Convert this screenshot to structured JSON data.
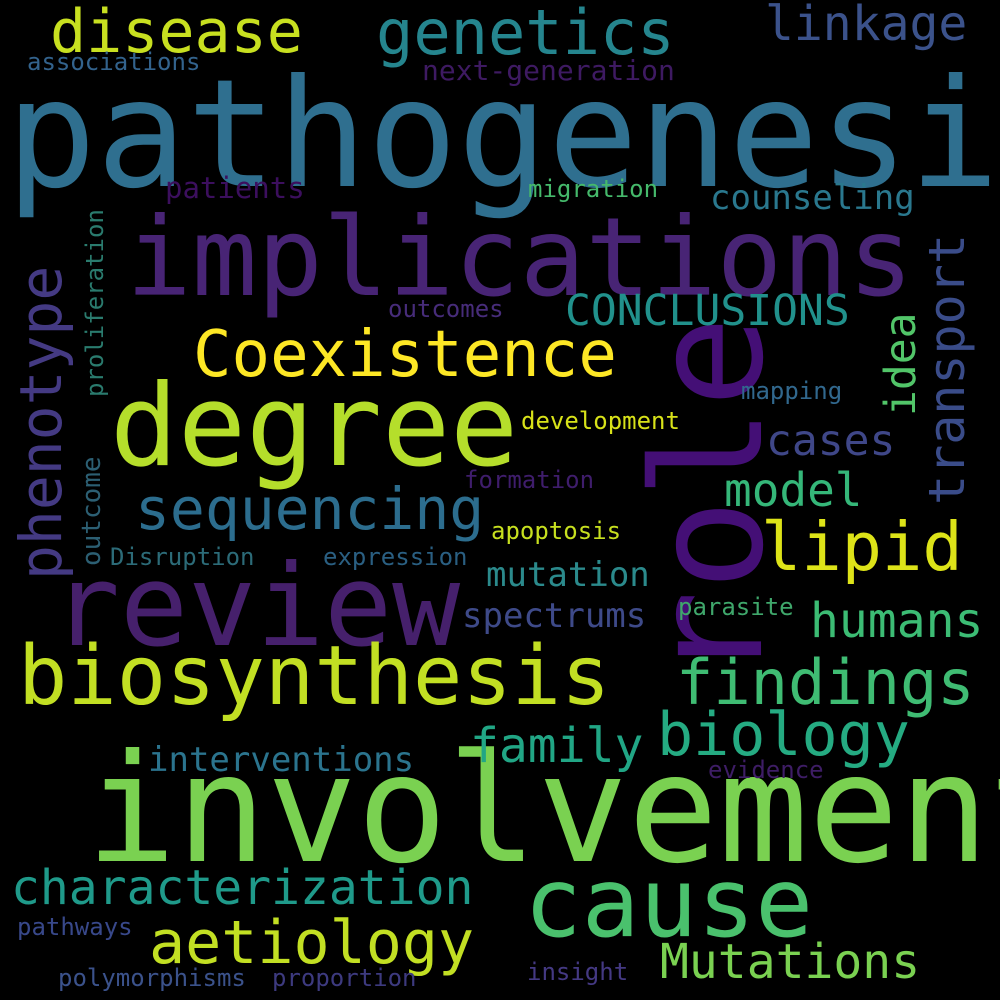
{
  "words": [
    {
      "text": "pathogenesis",
      "color": "#2f6f8f"
    },
    {
      "text": "involvement",
      "color": "#7ad151"
    },
    {
      "text": "implications",
      "color": "#482475"
    },
    {
      "text": "role",
      "color": "#440f76"
    },
    {
      "text": "degree",
      "color": "#b5de2b"
    },
    {
      "text": "review",
      "color": "#46206c"
    },
    {
      "text": "biosynthesis",
      "color": "#c2df23"
    },
    {
      "text": "cause",
      "color": "#4ac16d"
    },
    {
      "text": "disease",
      "color": "#c8e020"
    },
    {
      "text": "genetics",
      "color": "#25858e"
    },
    {
      "text": "linkage",
      "color": "#3b528b"
    },
    {
      "text": "associations",
      "color": "#33638d"
    },
    {
      "text": "next-generation",
      "color": "#3e1a62"
    },
    {
      "text": "patients",
      "color": "#3c0f5e"
    },
    {
      "text": "migration",
      "color": "#45b96b"
    },
    {
      "text": "counseling",
      "color": "#2a788e"
    },
    {
      "text": "phenotype",
      "color": "#443a83"
    },
    {
      "text": "proliferation",
      "color": "#2a7b6e"
    },
    {
      "text": "transport",
      "color": "#3a4c89"
    },
    {
      "text": "CONCLUSIONS",
      "color": "#21918c"
    },
    {
      "text": "idea",
      "color": "#52c569"
    },
    {
      "text": "Coexistence",
      "color": "#fde725"
    },
    {
      "text": "outcomes",
      "color": "#472c7a"
    },
    {
      "text": "mapping",
      "color": "#31688e"
    },
    {
      "text": "development",
      "color": "#d8e219"
    },
    {
      "text": "cases",
      "color": "#3f4788"
    },
    {
      "text": "model",
      "color": "#35b779"
    },
    {
      "text": "formation",
      "color": "#3f1d6c"
    },
    {
      "text": "sequencing",
      "color": "#2c6d8e"
    },
    {
      "text": "lipid",
      "color": "#dde318"
    },
    {
      "text": "outcome",
      "color": "#2c5f73"
    },
    {
      "text": "Disruption",
      "color": "#2c6b78"
    },
    {
      "text": "expression",
      "color": "#2a5f82"
    },
    {
      "text": "apoptosis",
      "color": "#c7e01f"
    },
    {
      "text": "mutation",
      "color": "#2b8a8c"
    },
    {
      "text": "humans",
      "color": "#3cbc74"
    },
    {
      "text": "spectrums",
      "color": "#3e4a89"
    },
    {
      "text": "parasite",
      "color": "#3fa76b"
    },
    {
      "text": "findings",
      "color": "#3fbc73"
    },
    {
      "text": "biology",
      "color": "#25ab82"
    },
    {
      "text": "family",
      "color": "#21a685"
    },
    {
      "text": "interventions",
      "color": "#2b748e"
    },
    {
      "text": "evidence",
      "color": "#3e1d66"
    },
    {
      "text": "characterization",
      "color": "#1f9a8a"
    },
    {
      "text": "aetiology",
      "color": "#c2df23"
    },
    {
      "text": "Mutations",
      "color": "#7ad151"
    },
    {
      "text": "pathways",
      "color": "#38488a"
    },
    {
      "text": "polymorphisms",
      "color": "#3b528b"
    },
    {
      "text": "proportion",
      "color": "#3d3a7f"
    },
    {
      "text": "insight",
      "color": "#443983"
    }
  ]
}
